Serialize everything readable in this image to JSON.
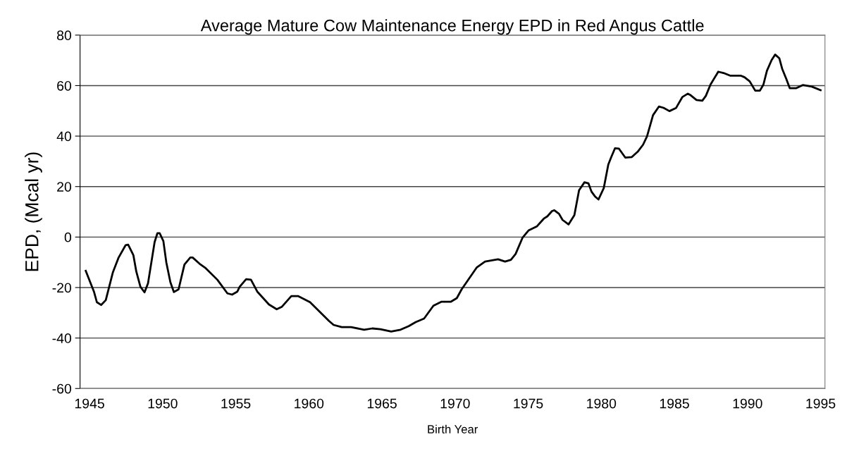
{
  "chart_data": {
    "type": "line",
    "title": "Average Mature Cow Maintenance Energy EPD in Red Angus Cattle",
    "xlabel": "Birth Year",
    "ylabel": "EPD, (Mcal yr)",
    "x": [
      1944.74,
      1945.3,
      1945.5,
      1945.79,
      1946.11,
      1946.59,
      1946.99,
      1947.47,
      1947.64,
      1948.0,
      1948.2,
      1948.48,
      1948.76,
      1949.0,
      1949.45,
      1949.64,
      1949.8,
      1950.05,
      1950.25,
      1950.53,
      1950.77,
      1951.09,
      1951.49,
      1951.89,
      1952.05,
      1952.53,
      1952.94,
      1953.74,
      1954.43,
      1954.75,
      1955.11,
      1955.27,
      1955.71,
      1956.04,
      1956.47,
      1957.27,
      1957.8,
      1958.16,
      1958.8,
      1959.28,
      1960.08,
      1961.37,
      1961.69,
      1962.25,
      1962.89,
      1963.78,
      1964.34,
      1964.9,
      1965.63,
      1966.27,
      1966.83,
      1967.31,
      1967.88,
      1968.52,
      1969.08,
      1969.72,
      1970.12,
      1970.45,
      1971.49,
      1972.05,
      1972.94,
      1973.42,
      1973.82,
      1974.14,
      1974.62,
      1975.02,
      1975.59,
      1976.07,
      1976.31,
      1976.63,
      1976.79,
      1977.11,
      1977.35,
      1977.76,
      1978.16,
      1978.48,
      1978.85,
      1979.12,
      1979.33,
      1979.57,
      1979.81,
      1980.17,
      1980.48,
      1980.67,
      1980.94,
      1981.21,
      1981.64,
      1982.09,
      1982.49,
      1982.86,
      1983.13,
      1983.54,
      1983.94,
      1984.26,
      1984.66,
      1985.11,
      1985.55,
      1985.92,
      1986.11,
      1986.51,
      1986.91,
      1987.15,
      1987.47,
      1988.0,
      1988.36,
      1988.84,
      1989.56,
      1989.8,
      1990.15,
      1990.53,
      1990.85,
      1991.09,
      1991.33,
      1991.65,
      1991.89,
      1992.18,
      1992.37,
      1992.65,
      1992.89,
      1993.34,
      1993.78,
      1994.4,
      1995.0
    ],
    "series": [
      {
        "color": "#000000",
        "values": [
          -13.4,
          -21.6,
          -25.8,
          -26.9,
          -25.0,
          -14.1,
          -8.1,
          -3.2,
          -3.0,
          -7.2,
          -13.7,
          -19.7,
          -21.9,
          -18.3,
          -2.0,
          1.5,
          1.5,
          -1.6,
          -10.0,
          -17.9,
          -21.8,
          -20.7,
          -10.9,
          -8.1,
          -8.1,
          -10.6,
          -12.3,
          -16.9,
          -22.3,
          -22.8,
          -21.6,
          -19.7,
          -16.7,
          -16.9,
          -21.6,
          -26.7,
          -28.6,
          -27.6,
          -23.4,
          -23.4,
          -25.8,
          -33.2,
          -34.8,
          -35.7,
          -35.7,
          -36.7,
          -36.2,
          -36.5,
          -37.4,
          -36.7,
          -35.3,
          -33.7,
          -32.3,
          -27.2,
          -25.6,
          -25.6,
          -24.2,
          -20.7,
          -12.0,
          -9.7,
          -8.8,
          -9.7,
          -9.0,
          -6.7,
          -0.2,
          2.6,
          4.2,
          7.3,
          8.2,
          10.3,
          10.6,
          9.2,
          6.8,
          5.0,
          8.7,
          18.5,
          21.7,
          21.3,
          18.0,
          16.1,
          14.9,
          19.4,
          28.7,
          31.5,
          35.2,
          35.0,
          31.5,
          31.7,
          33.8,
          36.6,
          39.9,
          48.3,
          51.7,
          51.2,
          49.9,
          51.1,
          55.5,
          56.8,
          56.2,
          54.3,
          54.0,
          55.9,
          60.4,
          65.5,
          65.0,
          63.9,
          63.9,
          63.3,
          61.7,
          58.0,
          58.0,
          60.4,
          65.9,
          70.1,
          72.3,
          70.8,
          66.7,
          62.7,
          59.0,
          59.0,
          60.2,
          59.6,
          58.2
        ]
      }
    ],
    "xlim": [
      1944.35,
      1995.3
    ],
    "xticks": [
      1945,
      1950,
      1955,
      1960,
      1965,
      1970,
      1975,
      1980,
      1985,
      1990,
      1995
    ],
    "ylim": [
      -60,
      80
    ],
    "yticks": [
      -60,
      -40,
      -20,
      0,
      20,
      40,
      60,
      80
    ],
    "grid": "y",
    "marker": "none",
    "line_style": "solid"
  }
}
